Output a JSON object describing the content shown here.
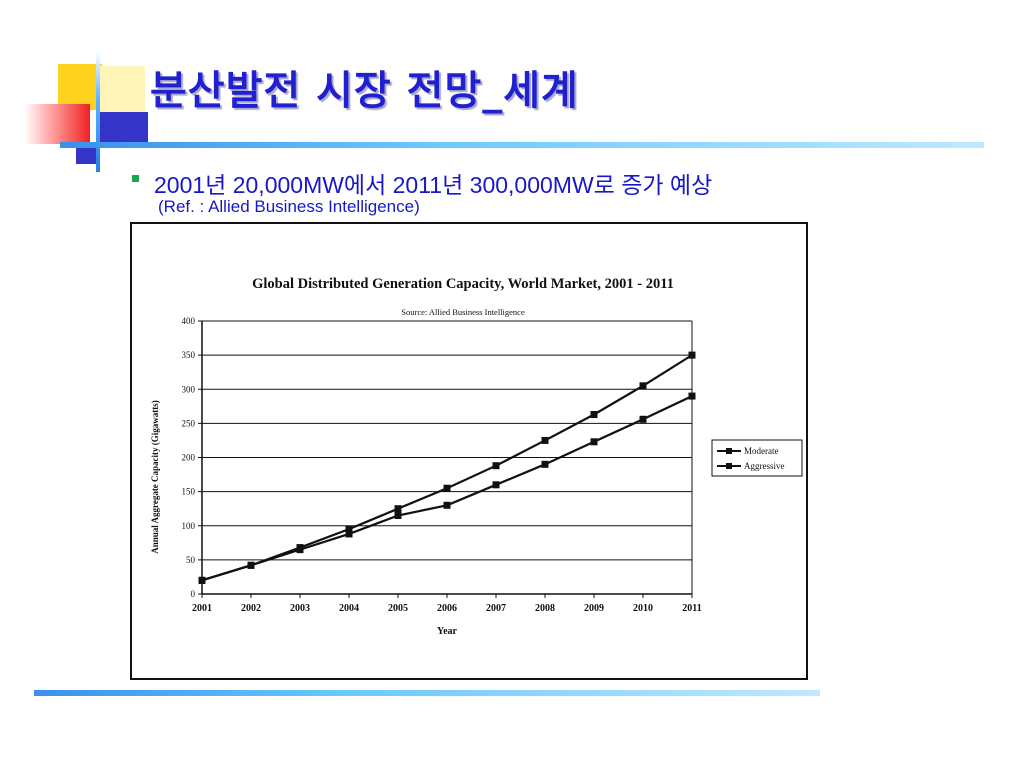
{
  "slide": {
    "title": "분산발전 시장 전망_세계",
    "bullet": "2001년 20,000MW에서 2011년 300,000MW로 증가 예상",
    "reference": "(Ref. : Allied Business Intelligence)"
  },
  "chart_data": {
    "type": "line",
    "title": "Global Distributed Generation Capacity, World Market, 2001 - 2011",
    "subtitle": "Source: Allied Business Intelligence",
    "xlabel": "Year",
    "ylabel": "Annual Aggregate Capacity (Gigawatts)",
    "categories": [
      "2001",
      "2002",
      "2003",
      "2004",
      "2005",
      "2006",
      "2007",
      "2008",
      "2009",
      "2010",
      "2011"
    ],
    "yticks": [
      "0",
      "50",
      "100",
      "150",
      "200",
      "250",
      "300",
      "350",
      "400"
    ],
    "ylim": [
      0,
      400
    ],
    "grid": true,
    "legend": "right",
    "series": [
      {
        "name": "Moderate",
        "values": [
          20,
          42,
          68,
          95,
          125,
          155,
          188,
          225,
          263,
          305,
          350
        ]
      },
      {
        "name": "Aggressive",
        "values": [
          20,
          42,
          65,
          88,
          115,
          130,
          160,
          190,
          223,
          256,
          290
        ]
      }
    ]
  }
}
